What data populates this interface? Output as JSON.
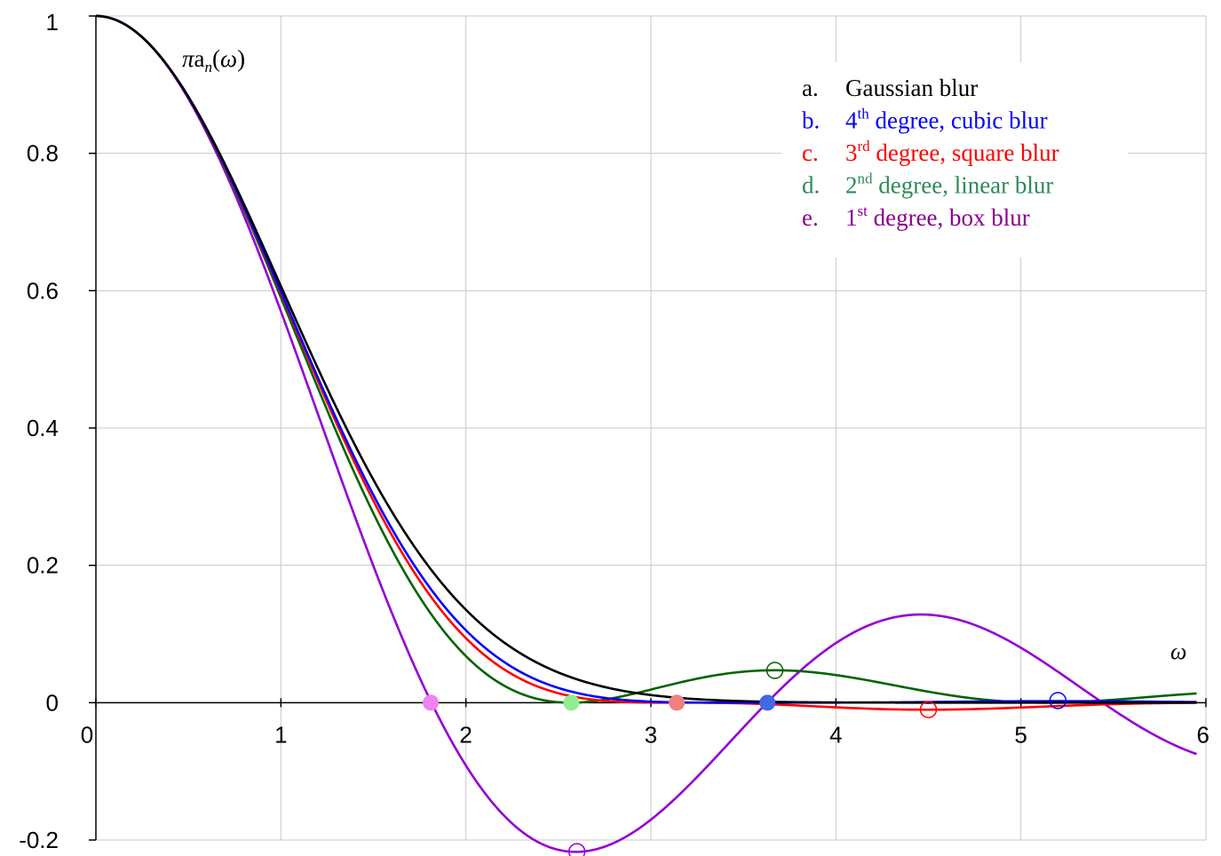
{
  "chart_data": {
    "type": "line",
    "title": "",
    "xlabel": "ω",
    "ylabel": "πa(ω)",
    "ylabel_parts": {
      "prefix": "πa",
      "sub": "n",
      "suffix": "(ω)"
    },
    "xlim": [
      0,
      6
    ],
    "ylim": [
      -0.2,
      1
    ],
    "x_ticks": [
      0,
      1,
      2,
      3,
      4,
      5,
      6
    ],
    "x_tick_labels": [
      "0",
      "1",
      "2",
      "3",
      "4",
      "5",
      "6"
    ],
    "y_ticks": [
      -0.2,
      0,
      0.2,
      0.4,
      0.6,
      0.8,
      1
    ],
    "y_tick_labels": [
      "-0.2",
      "0",
      "0.2",
      "0.4",
      "0.6",
      "0.8",
      "1"
    ],
    "grid": true,
    "legend_position": "top-right",
    "legend": [
      {
        "letter": "a.",
        "pre": "Gaussian blur",
        "sup": "",
        "post": "",
        "color": "#000000"
      },
      {
        "letter": "b.",
        "pre": "4",
        "sup": "th",
        "post": " degree, cubic blur",
        "color": "#0000ff"
      },
      {
        "letter": "c.",
        "pre": "3",
        "sup": "rd",
        "post": " degree, square blur",
        "color": "#ff0000"
      },
      {
        "letter": "d.",
        "pre": "2",
        "sup": "nd",
        "post": " degree, linear blur",
        "color": "#2e8b57"
      },
      {
        "letter": "e.",
        "pre": "1",
        "sup": "st",
        "post": " degree, box blur",
        "color": "#8b008b"
      }
    ],
    "series": [
      {
        "id": "a",
        "color": "#000000",
        "kind": "gaussian",
        "s": 1.0,
        "xmax": 5.95
      },
      {
        "id": "b",
        "color": "#0000ff",
        "kind": "sinc_power",
        "n": 4,
        "h": 1.7321,
        "xmax": 5.95
      },
      {
        "id": "c",
        "color": "#ff0000",
        "kind": "sinc_power",
        "n": 3,
        "h": 2.0,
        "xmax": 5.95
      },
      {
        "id": "d",
        "color": "#006400",
        "kind": "sinc_power",
        "n": 2,
        "h": 2.4495,
        "xmax": 5.95
      },
      {
        "id": "e",
        "color": "#9400d3",
        "kind": "sinc_power",
        "n": 1,
        "h": 3.4641,
        "xmax": 5.95
      }
    ],
    "filled_markers": [
      {
        "x": 1.81,
        "y": 0,
        "color": "#ee82ee"
      },
      {
        "x": 2.57,
        "y": 0,
        "color": "#90ee90"
      },
      {
        "x": 3.14,
        "y": 0,
        "color": "#f08080"
      },
      {
        "x": 3.63,
        "y": 0,
        "color": "#4169e1"
      }
    ],
    "open_markers": [
      {
        "x": 2.6,
        "y": -0.217,
        "color": "#9400d3"
      },
      {
        "x": 3.67,
        "y": 0.047,
        "color": "#006400"
      },
      {
        "x": 4.5,
        "y": -0.01,
        "color": "#ff0000"
      },
      {
        "x": 5.2,
        "y": 0.003,
        "color": "#0000ff"
      }
    ]
  }
}
